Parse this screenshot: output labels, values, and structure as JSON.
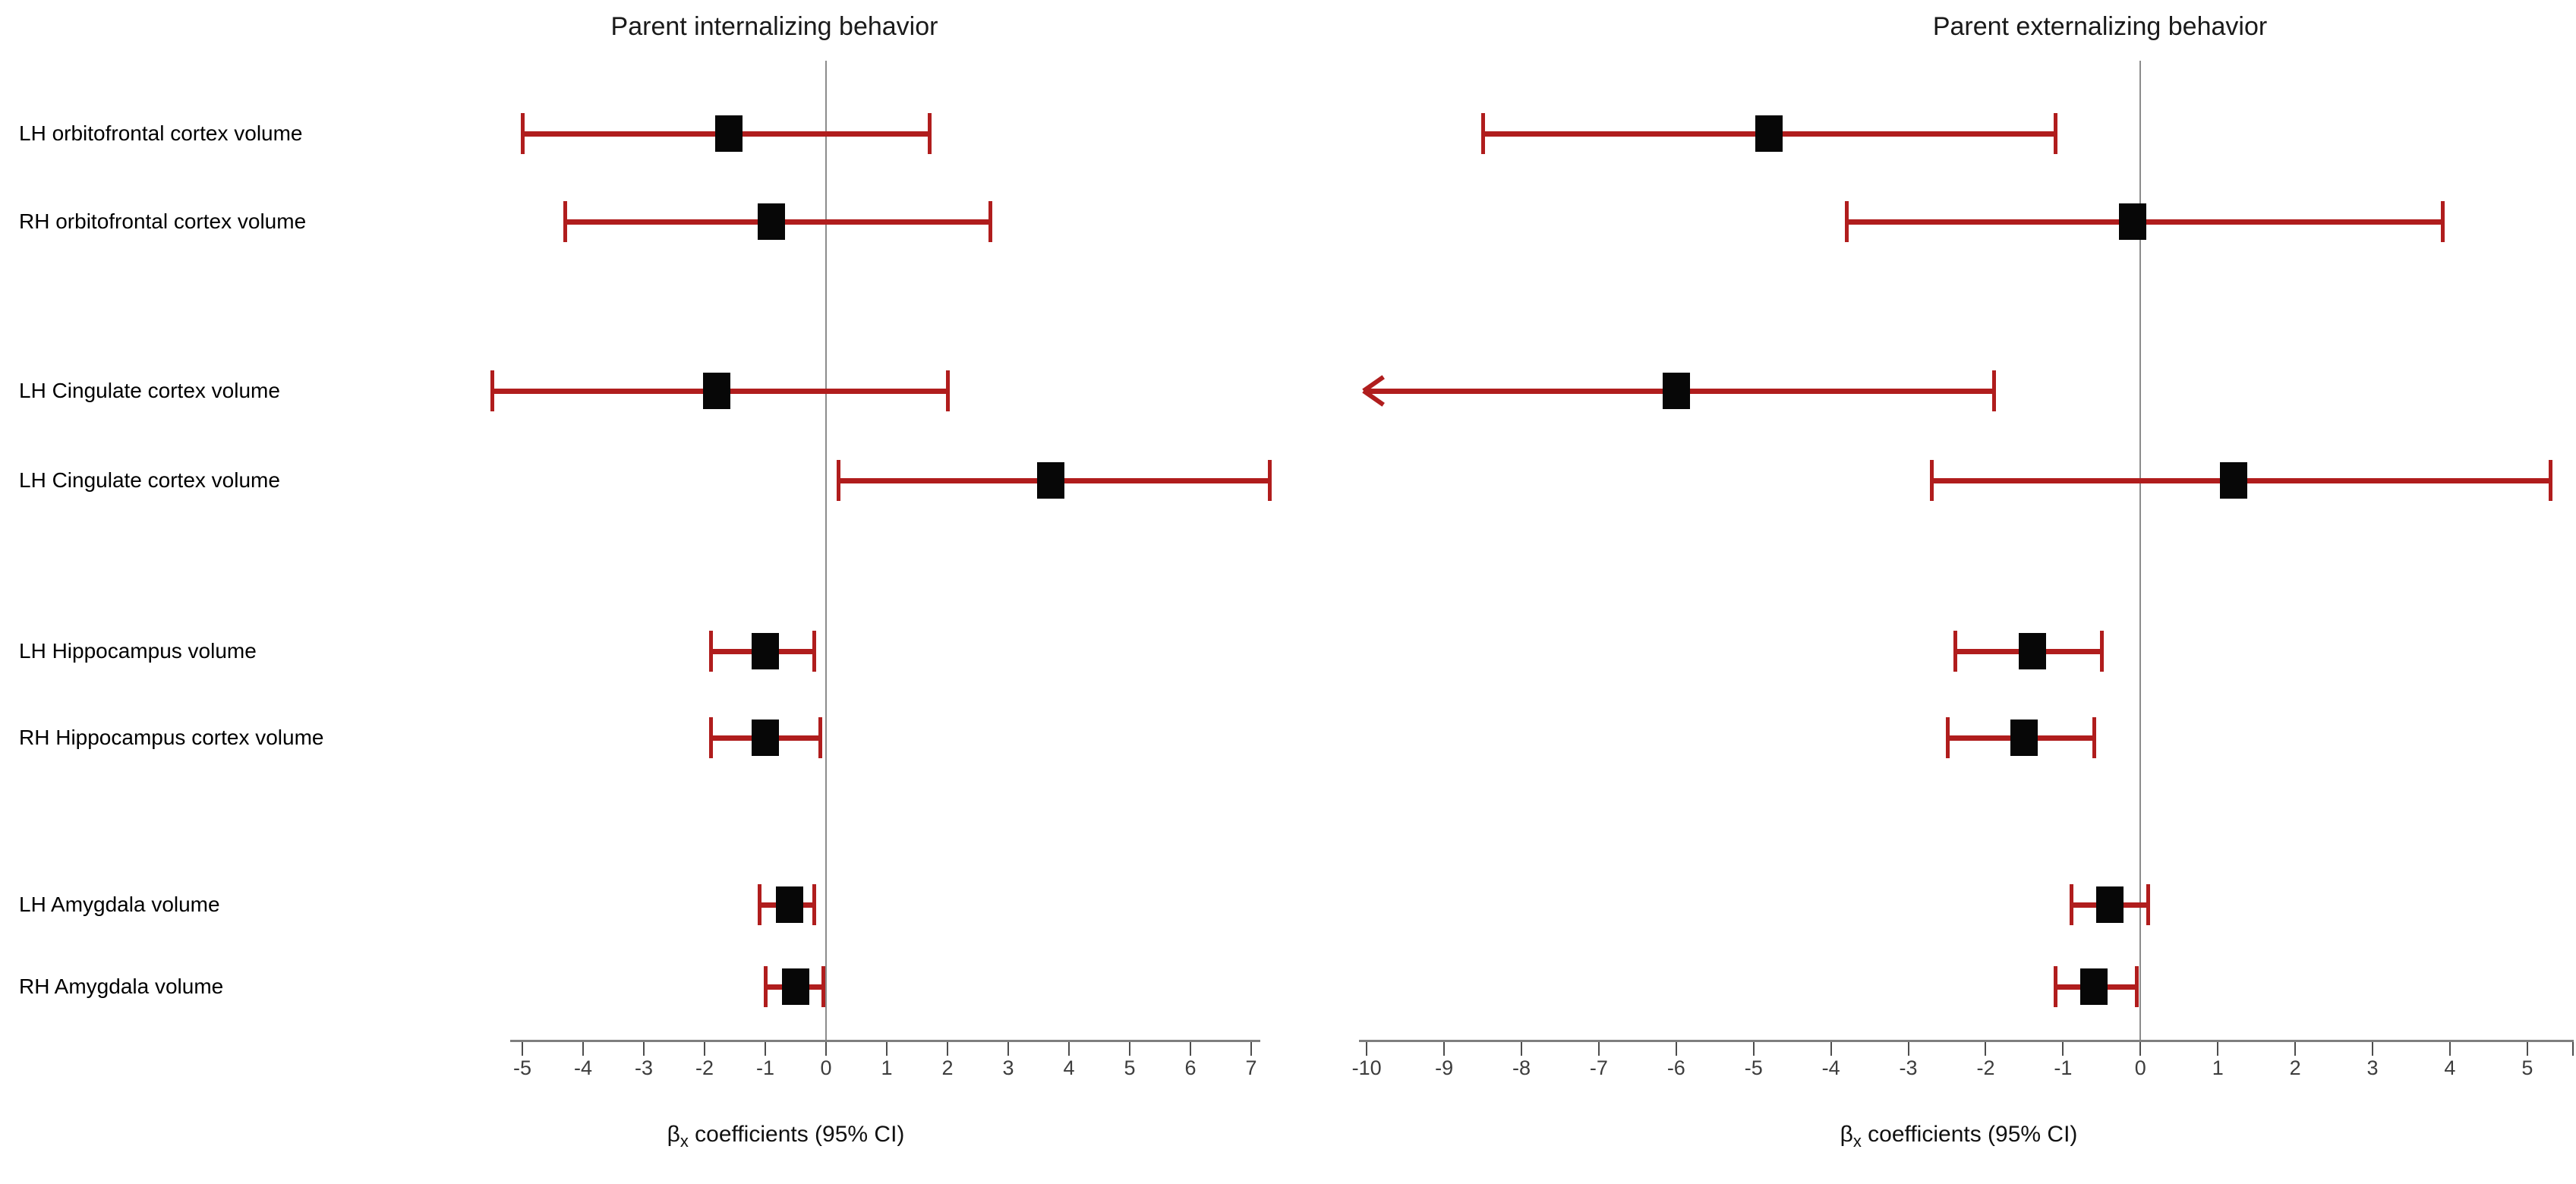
{
  "figure_label": "Forest plots of brain region volumes vs parent behavior",
  "colors": {
    "error_bar": "#b01d1d",
    "marker": "#070707",
    "gridline": "#8c8c8c",
    "axis": "#7f7f7f",
    "tick": "#4d4d4d",
    "text": "#000000"
  },
  "chart_data": {
    "type": "forest",
    "grid": "zero-line-only",
    "row_labels": [
      "LH orbitofrontal cortex volume",
      "RH orbitofrontal cortex volume",
      "LH Cingulate cortex volume",
      "LH Cingulate cortex volume",
      "LH Hippocampus volume",
      "RH Hippocampus cortex volume",
      "LH Amygdala volume",
      "RH Amygdala volume"
    ],
    "panels": [
      {
        "title": "Parent internalizing behavior",
        "xlabel": {
          "beta": "β",
          "sub": "x",
          "rest": " coefficients (95% CI)"
        },
        "xlabel_text": "βx coefficients (95% CI)",
        "xlim": [
          -5.2,
          7.15
        ],
        "xticks": [
          -5,
          -4,
          -3,
          -2,
          -1,
          0,
          1,
          2,
          3,
          4,
          5,
          6,
          7
        ],
        "zero_line": 0,
        "right_edge_tick": false,
        "series": [
          {
            "beta": -1.6,
            "lo": -5.0,
            "hi": 1.7,
            "lo_clipped": false
          },
          {
            "beta": -0.9,
            "lo": -4.3,
            "hi": 2.7,
            "lo_clipped": false
          },
          {
            "beta": -1.8,
            "lo": -5.5,
            "hi": 2.0,
            "lo_clipped": false
          },
          {
            "beta": 3.7,
            "lo": 0.2,
            "hi": 7.3,
            "lo_clipped": false
          },
          {
            "beta": -1.0,
            "lo": -1.9,
            "hi": -0.2,
            "lo_clipped": false
          },
          {
            "beta": -1.0,
            "lo": -1.9,
            "hi": -0.1,
            "lo_clipped": false
          },
          {
            "beta": -0.6,
            "lo": -1.1,
            "hi": -0.2,
            "lo_clipped": false
          },
          {
            "beta": -0.5,
            "lo": -1.0,
            "hi": -0.05,
            "lo_clipped": false
          }
        ]
      },
      {
        "title": "Parent externalizing behavior",
        "xlabel": {
          "beta": "β",
          "sub": "x",
          "rest": " coefficients (95% CI)"
        },
        "xlabel_text": "βx coefficients (95% CI)",
        "xlim": [
          -10.1,
          5.6
        ],
        "xticks": [
          -10,
          -9,
          -8,
          -7,
          -6,
          -5,
          -4,
          -3,
          -2,
          -1,
          0,
          1,
          2,
          3,
          4,
          5
        ],
        "zero_line": 0,
        "right_edge_tick": true,
        "series": [
          {
            "beta": -4.8,
            "lo": -8.5,
            "hi": -1.1,
            "lo_clipped": false
          },
          {
            "beta": -0.1,
            "lo": -3.8,
            "hi": 3.9,
            "lo_clipped": false
          },
          {
            "beta": -6.0,
            "lo": -10.0,
            "hi": -1.9,
            "lo_clipped": true
          },
          {
            "beta": 1.2,
            "lo": -2.7,
            "hi": 5.3,
            "lo_clipped": false
          },
          {
            "beta": -1.4,
            "lo": -2.4,
            "hi": -0.5,
            "lo_clipped": false
          },
          {
            "beta": -1.5,
            "lo": -2.5,
            "hi": -0.6,
            "lo_clipped": false
          },
          {
            "beta": -0.4,
            "lo": -0.9,
            "hi": 0.1,
            "lo_clipped": false
          },
          {
            "beta": -0.6,
            "lo": -1.1,
            "hi": -0.05,
            "lo_clipped": false
          }
        ]
      }
    ]
  }
}
